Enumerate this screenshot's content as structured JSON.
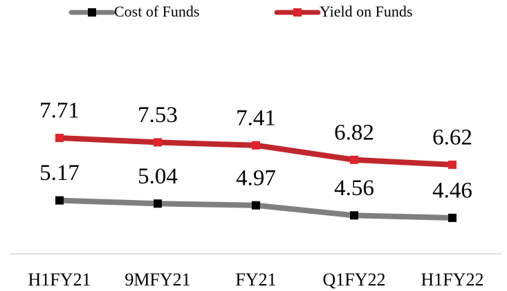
{
  "chart_data": {
    "type": "line",
    "categories": [
      "H1FY21",
      "9MFY21",
      "FY21",
      "Q1FY22",
      "H1FY22"
    ],
    "series": [
      {
        "name": "Cost of Funds",
        "color": "#7f7f7f",
        "marker_color": "#000000",
        "values": [
          5.17,
          5.04,
          4.97,
          4.56,
          4.46
        ]
      },
      {
        "name": "Yield on Funds",
        "color": "#c0272d",
        "marker_color": "#e0242b",
        "values": [
          7.71,
          7.53,
          7.41,
          6.82,
          6.62
        ]
      }
    ],
    "ylim": [
      3,
      9
    ]
  }
}
